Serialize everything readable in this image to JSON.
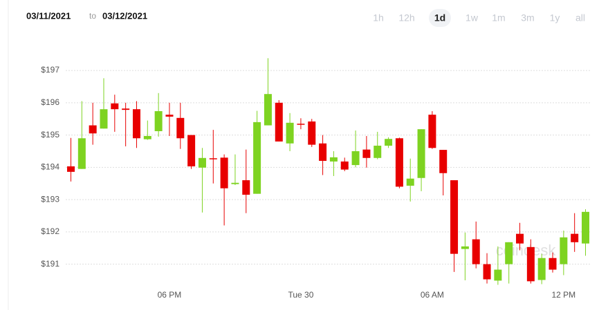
{
  "header": {
    "from": "03/11/2021",
    "to_word": "to",
    "to": "03/12/2021",
    "ranges": [
      "1h",
      "12h",
      "1d",
      "1w",
      "1m",
      "3m",
      "1y",
      "all"
    ],
    "active_range": 2
  },
  "chart_data": {
    "type": "candlestick",
    "watermark": "coindesk",
    "categories": [
      null,
      null,
      null,
      null,
      null,
      null,
      null,
      null,
      null,
      "06 PM",
      null,
      null,
      null,
      null,
      null,
      null,
      null,
      null,
      null,
      null,
      null,
      "Tue 30",
      null,
      null,
      null,
      null,
      null,
      null,
      null,
      null,
      null,
      null,
      null,
      "06 AM",
      null,
      null,
      null,
      null,
      null,
      null,
      null,
      null,
      null,
      null,
      null,
      "12 PM",
      null,
      null
    ],
    "open": [
      194.03,
      193.95,
      195.3,
      195.2,
      195.98,
      195.82,
      195.8,
      194.87,
      195.12,
      195.63,
      195.53,
      195.0,
      193.99,
      194.28,
      194.3,
      193.48,
      193.6,
      193.18,
      195.3,
      196.0,
      194.74,
      195.35,
      195.42,
      194.74,
      194.18,
      194.18,
      194.07,
      194.55,
      194.29,
      194.67,
      194.9,
      193.43,
      193.67,
      195.63,
      194.54,
      193.6,
      191.47,
      191.77,
      191.0,
      190.49,
      191.0,
      191.94,
      191.53,
      190.51,
      191.19,
      191.0,
      191.94,
      191.64
    ],
    "high": [
      194.91,
      196.05,
      196.0,
      196.76,
      196.25,
      196.0,
      196.05,
      195.45,
      196.3,
      196.0,
      196.0,
      195.0,
      194.6,
      195.16,
      194.4,
      194.4,
      194.55,
      195.75,
      197.38,
      196.08,
      195.68,
      195.52,
      195.5,
      195.0,
      194.5,
      194.3,
      195.14,
      194.97,
      195.1,
      194.93,
      194.92,
      194.27,
      195.18,
      195.74,
      194.54,
      193.6,
      191.98,
      192.32,
      191.34,
      191.55,
      191.68,
      192.28,
      191.77,
      191.32,
      191.36,
      192.04,
      192.58,
      192.7
    ],
    "low": [
      193.56,
      193.95,
      194.7,
      195.2,
      195.1,
      194.65,
      194.6,
      194.85,
      194.95,
      194.97,
      194.57,
      193.95,
      192.6,
      193.5,
      192.2,
      193.45,
      192.58,
      193.18,
      195.3,
      194.8,
      194.5,
      195.18,
      194.63,
      193.76,
      193.73,
      193.88,
      194.0,
      193.99,
      194.25,
      194.6,
      193.35,
      192.94,
      193.26,
      194.57,
      193.13,
      190.76,
      190.5,
      190.87,
      190.4,
      190.36,
      190.4,
      191.43,
      190.4,
      190.38,
      190.74,
      190.66,
      191.38,
      191.26
    ],
    "close": [
      193.86,
      194.9,
      195.05,
      195.8,
      195.8,
      195.78,
      194.9,
      194.97,
      195.74,
      195.57,
      194.9,
      194.03,
      194.29,
      194.25,
      193.35,
      193.52,
      193.15,
      195.4,
      196.27,
      194.8,
      195.38,
      195.32,
      194.7,
      194.2,
      194.31,
      193.93,
      194.5,
      194.29,
      194.67,
      194.88,
      193.4,
      193.65,
      195.18,
      194.6,
      193.82,
      191.32,
      191.55,
      191.0,
      190.53,
      190.83,
      191.68,
      191.64,
      190.47,
      191.19,
      190.83,
      191.83,
      191.68,
      192.62
    ],
    "up_color": "#7ed321",
    "down_color": "#e80000",
    "ylim": [
      190.2,
      197.9
    ],
    "yticks": [
      {
        "value": 191,
        "label": "$191"
      },
      {
        "value": 192,
        "label": "$192"
      },
      {
        "value": 193,
        "label": "$193"
      },
      {
        "value": 194,
        "label": "$194"
      },
      {
        "value": 195,
        "label": "$195"
      },
      {
        "value": 196,
        "label": "$196"
      },
      {
        "value": 197,
        "label": "$197"
      }
    ],
    "grid": true
  }
}
